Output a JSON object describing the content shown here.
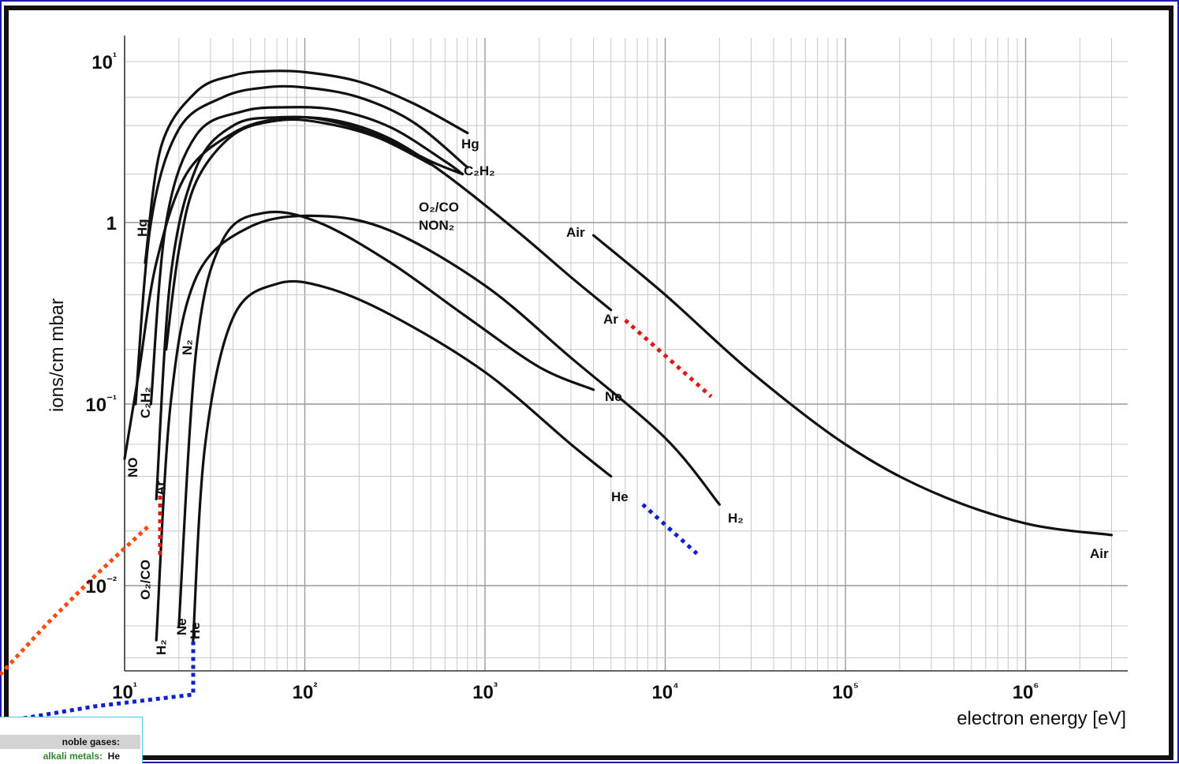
{
  "chart_data": {
    "type": "line",
    "title": "",
    "xlabel": "electron energy [eV]",
    "ylabel": "ions/cm mbar",
    "x_scale": "log",
    "y_scale": "log",
    "xlim": [
      10,
      4000000
    ],
    "ylim": [
      0.004,
      10
    ],
    "x_ticks": [
      {
        "value": 10,
        "label": "10¹"
      },
      {
        "value": 100,
        "label": "10²"
      },
      {
        "value": 1000,
        "label": "10³"
      },
      {
        "value": 10000,
        "label": "10⁴"
      },
      {
        "value": 100000,
        "label": "10⁵"
      },
      {
        "value": 1000000,
        "label": "10⁶"
      }
    ],
    "y_ticks": [
      {
        "value": 10,
        "label": "10¹"
      },
      {
        "value": 1,
        "label": "1"
      },
      {
        "value": 0.1,
        "label": "10⁻¹"
      },
      {
        "value": 0.01,
        "label": "10⁻²"
      }
    ],
    "grid": true,
    "series": [
      {
        "name": "Hg",
        "color": "#111111",
        "points": [
          [
            13,
            0.6
          ],
          [
            16,
            3
          ],
          [
            25,
            6.5
          ],
          [
            40,
            8.2
          ],
          [
            60,
            8.7
          ],
          [
            100,
            8.6
          ],
          [
            200,
            7.5
          ],
          [
            400,
            5.5
          ],
          [
            800,
            3.6
          ]
        ]
      },
      {
        "name": "C₂H₂",
        "color": "#111111",
        "points": [
          [
            11.5,
            0.1
          ],
          [
            14,
            1
          ],
          [
            20,
            3.8
          ],
          [
            35,
            6
          ],
          [
            60,
            6.9
          ],
          [
            100,
            6.9
          ],
          [
            200,
            6
          ],
          [
            400,
            4.2
          ],
          [
            800,
            2.2
          ]
        ]
      },
      {
        "name": "O₂/CO NON₂",
        "color": "#111111",
        "points": [
          [
            14,
            0.1
          ],
          [
            17,
            1
          ],
          [
            25,
            3.5
          ],
          [
            45,
            4.9
          ],
          [
            80,
            5.2
          ],
          [
            150,
            5
          ],
          [
            300,
            3.9
          ],
          [
            600,
            2.4
          ],
          [
            750,
            2
          ]
        ]
      },
      {
        "name": "Air",
        "color": "#111111",
        "points": [
          [
            4000,
            0.85
          ],
          [
            10000,
            0.4
          ],
          [
            30000,
            0.15
          ],
          [
            100000,
            0.06
          ],
          [
            300000,
            0.033
          ],
          [
            1000000,
            0.022
          ],
          [
            3000000,
            0.019
          ]
        ]
      },
      {
        "name": "Ar",
        "color": "#111111",
        "points": [
          [
            15,
            0.03
          ],
          [
            18,
            0.5
          ],
          [
            25,
            2.2
          ],
          [
            40,
            4
          ],
          [
            70,
            4.5
          ],
          [
            150,
            4.3
          ],
          [
            300,
            3.3
          ],
          [
            600,
            2
          ],
          [
            1500,
            0.9
          ],
          [
            3000,
            0.5
          ],
          [
            5000,
            0.33
          ]
        ]
      },
      {
        "name": "N₂",
        "color": "#111111",
        "points": [
          [
            17,
            0.2
          ],
          [
            20,
            0.7
          ],
          [
            25,
            1.8
          ],
          [
            40,
            3.5
          ],
          [
            70,
            4.3
          ],
          [
            120,
            4.2
          ],
          [
            250,
            3.4
          ],
          [
            500,
            2.3
          ]
        ]
      },
      {
        "name": "NO",
        "color": "#111111",
        "points": [
          [
            10,
            0.05
          ],
          [
            12,
            0.15
          ],
          [
            15,
            0.6
          ],
          [
            22,
            2
          ],
          [
            40,
            3.6
          ],
          [
            70,
            4.4
          ],
          [
            120,
            4.4
          ],
          [
            250,
            3.5
          ],
          [
            500,
            2.4
          ],
          [
            750,
            2
          ]
        ]
      },
      {
        "name": "Ne",
        "color": "#111111",
        "points": [
          [
            20,
            0.006
          ],
          [
            25,
            0.2
          ],
          [
            35,
            0.8
          ],
          [
            60,
            1.15
          ],
          [
            120,
            1
          ],
          [
            300,
            0.6
          ],
          [
            800,
            0.3
          ],
          [
            2000,
            0.16
          ],
          [
            4000,
            0.12
          ]
        ]
      },
      {
        "name": "H₂",
        "color": "#111111",
        "points": [
          [
            15,
            0.005
          ],
          [
            18,
            0.1
          ],
          [
            25,
            0.5
          ],
          [
            50,
            0.95
          ],
          [
            120,
            1.1
          ],
          [
            300,
            0.9
          ],
          [
            1000,
            0.45
          ],
          [
            3000,
            0.18
          ],
          [
            10000,
            0.065
          ],
          [
            20000,
            0.028
          ]
        ]
      },
      {
        "name": "He",
        "color": "#111111",
        "points": [
          [
            24,
            0.005
          ],
          [
            28,
            0.06
          ],
          [
            40,
            0.3
          ],
          [
            70,
            0.46
          ],
          [
            130,
            0.44
          ],
          [
            300,
            0.31
          ],
          [
            1000,
            0.15
          ],
          [
            3000,
            0.06
          ],
          [
            5000,
            0.04
          ]
        ]
      }
    ],
    "extrapolations": [
      {
        "for": "Ar",
        "color": "#e01818",
        "points": [
          [
            6000,
            0.29
          ],
          [
            18000,
            0.11
          ]
        ]
      },
      {
        "for": "He",
        "color": "#1020d0",
        "points": [
          [
            7500,
            0.028
          ],
          [
            15000,
            0.015
          ]
        ]
      }
    ],
    "labels": {
      "left_Hg": "Hg",
      "left_C2H2": "C₂H₂",
      "left_NO": "NO",
      "left_Ar": "Ar",
      "left_O2CO": "O₂/CO",
      "left_N2": "N₂",
      "left_H2": "H₂",
      "left_Ne": "Ne",
      "left_He": "He",
      "r_Hg": "Hg",
      "r_C2H2": "C₂H₂",
      "r_O2CO": "O₂/CO",
      "r_NON2": "NON₂",
      "r_Air_top": "Air",
      "r_Ar": "Ar",
      "r_Ne": "Ne",
      "r_He": "He",
      "r_H2": "H₂",
      "r_Air_end": "Air"
    }
  },
  "legend": {
    "row1": "noble gases:",
    "row2_label": "alkali metals:",
    "row2_value": "He"
  },
  "colors": {
    "frame": "#1a1aa8",
    "red_dots": "#e01818",
    "orange_dots": "#ff4a10",
    "blue_dots": "#1020d0"
  }
}
